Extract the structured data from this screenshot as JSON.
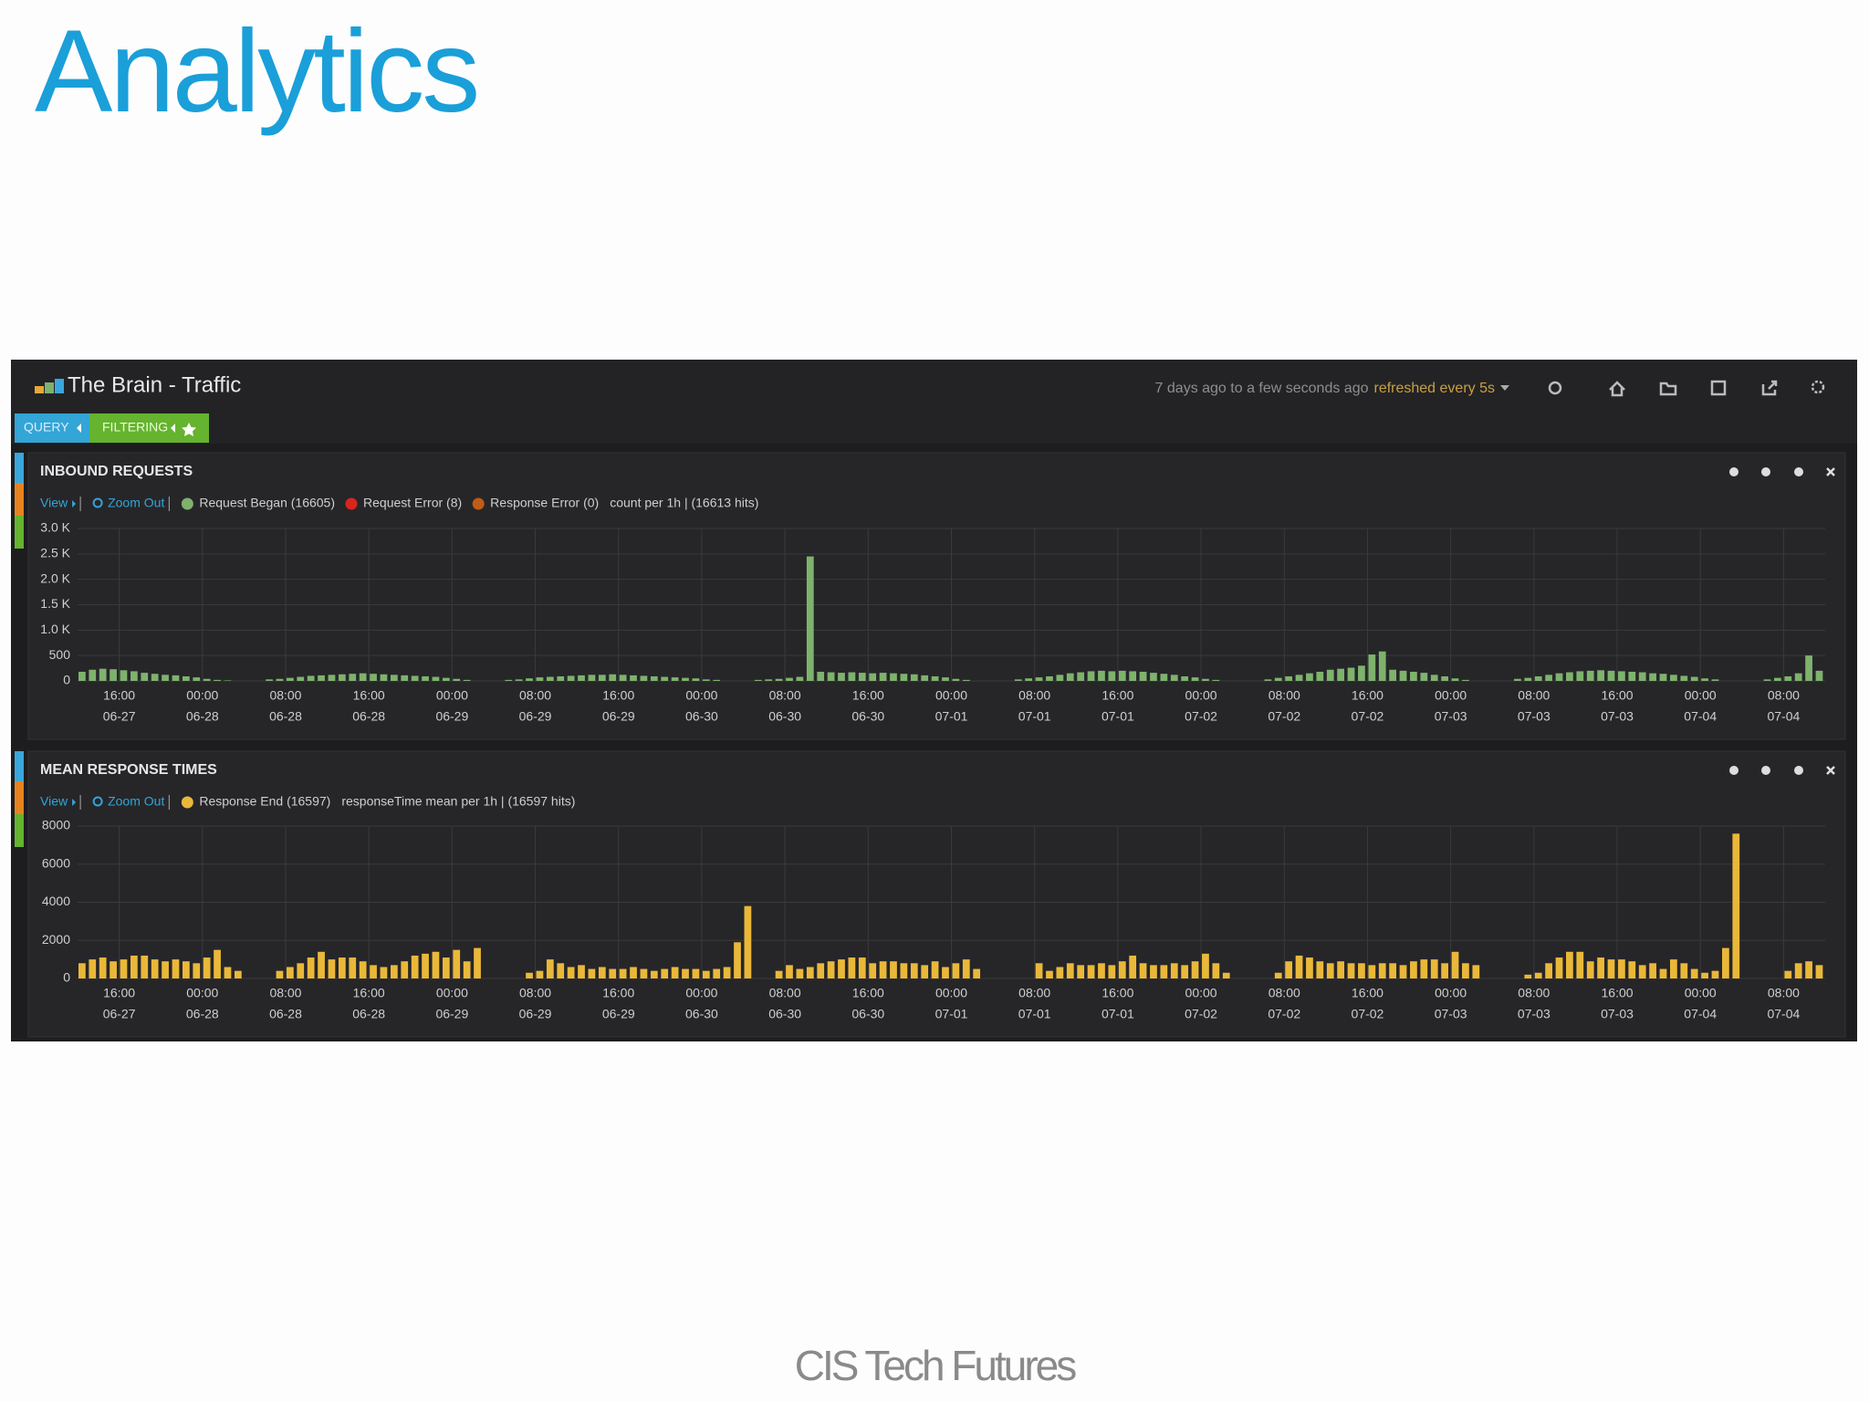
{
  "slide": {
    "title": "Analytics",
    "footer": "CIS Tech Futures"
  },
  "dashboard": {
    "title": "The Brain - Traffic",
    "time_range": "7 days ago to a few seconds ago",
    "refresh": "refreshed every 5s",
    "tabs": [
      "QUERY",
      "FILTERING"
    ]
  },
  "chart_data": [
    {
      "type": "bar",
      "title": "INBOUND REQUESTS",
      "view_label": "View",
      "zoom_label": "Zoom Out",
      "summary": "count per 1h | (16613 hits)",
      "other_legend": [
        {
          "name": "Request Error (8)",
          "color": "#d8261e"
        },
        {
          "name": "Response Error (0)",
          "color": "#c15c17"
        }
      ],
      "grid": true,
      "xlim": [
        12,
        180
      ],
      "ylim": [
        0,
        3000
      ],
      "yticks": [
        0,
        500,
        {
          "value": 1000,
          "label": "1.0 K"
        },
        {
          "value": 1500,
          "label": "1.5 K"
        },
        {
          "value": 2000,
          "label": "2.0 K"
        },
        {
          "value": 2500,
          "label": "2.5 K"
        },
        {
          "value": 3000,
          "label": "3.0 K"
        }
      ],
      "xticks": [
        {
          "value": 16,
          "label": "16:00",
          "date": "06-27"
        },
        {
          "value": 24,
          "label": "00:00",
          "date": "06-28"
        },
        {
          "value": 32,
          "label": "08:00",
          "date": "06-28"
        },
        {
          "value": 40,
          "label": "16:00",
          "date": "06-28"
        },
        {
          "value": 48,
          "label": "00:00",
          "date": "06-29"
        },
        {
          "value": 56,
          "label": "08:00",
          "date": "06-29"
        },
        {
          "value": 64,
          "label": "16:00",
          "date": "06-29"
        },
        {
          "value": 72,
          "label": "00:00",
          "date": "06-30"
        },
        {
          "value": 80,
          "label": "08:00",
          "date": "06-30"
        },
        {
          "value": 88,
          "label": "16:00",
          "date": "06-30"
        },
        {
          "value": 96,
          "label": "00:00",
          "date": "07-01"
        },
        {
          "value": 104,
          "label": "08:00",
          "date": "07-01"
        },
        {
          "value": 112,
          "label": "16:00",
          "date": "07-01"
        },
        {
          "value": 120,
          "label": "00:00",
          "date": "07-02"
        },
        {
          "value": 128,
          "label": "08:00",
          "date": "07-02"
        },
        {
          "value": 136,
          "label": "16:00",
          "date": "07-02"
        },
        {
          "value": 144,
          "label": "00:00",
          "date": "07-03"
        },
        {
          "value": 152,
          "label": "08:00",
          "date": "07-03"
        },
        {
          "value": 160,
          "label": "16:00",
          "date": "07-03"
        },
        {
          "value": 168,
          "label": "00:00",
          "date": "07-04"
        },
        {
          "value": 176,
          "label": "08:00",
          "date": "07-04"
        }
      ],
      "x": [
        12,
        13,
        14,
        15,
        16,
        17,
        18,
        19,
        20,
        21,
        22,
        23,
        24,
        25,
        26,
        27,
        28,
        29,
        30,
        31,
        32,
        33,
        34,
        35,
        36,
        37,
        38,
        39,
        40,
        41,
        42,
        43,
        44,
        45,
        46,
        47,
        48,
        49,
        50,
        51,
        52,
        53,
        54,
        55,
        56,
        57,
        58,
        59,
        60,
        61,
        62,
        63,
        64,
        65,
        66,
        67,
        68,
        69,
        70,
        71,
        72,
        73,
        74,
        75,
        76,
        77,
        78,
        79,
        80,
        81,
        82,
        83,
        84,
        85,
        86,
        87,
        88,
        89,
        90,
        91,
        92,
        93,
        94,
        95,
        96,
        97,
        98,
        99,
        100,
        101,
        102,
        103,
        104,
        105,
        106,
        107,
        108,
        109,
        110,
        111,
        112,
        113,
        114,
        115,
        116,
        117,
        118,
        119,
        120,
        121,
        122,
        123,
        124,
        125,
        126,
        127,
        128,
        129,
        130,
        131,
        132,
        133,
        134,
        135,
        136,
        137,
        138,
        139,
        140,
        141,
        142,
        143,
        144,
        145,
        146,
        147,
        148,
        149,
        150,
        151,
        152,
        153,
        154,
        155,
        156,
        157,
        158,
        159,
        160,
        161,
        162,
        163,
        164,
        165,
        166,
        167,
        168,
        169,
        170,
        171,
        172,
        173,
        174,
        175,
        176,
        177,
        178,
        179
      ],
      "series": [
        {
          "name": "Request Began (16605)",
          "color": "#7eb26d",
          "values": [
            180,
            220,
            240,
            230,
            210,
            190,
            160,
            140,
            120,
            110,
            90,
            70,
            40,
            20,
            10,
            null,
            null,
            null,
            30,
            40,
            60,
            80,
            100,
            110,
            120,
            130,
            140,
            150,
            140,
            130,
            120,
            110,
            100,
            90,
            80,
            60,
            40,
            20,
            null,
            null,
            null,
            20,
            30,
            50,
            70,
            80,
            90,
            100,
            110,
            120,
            120,
            130,
            120,
            110,
            100,
            90,
            80,
            70,
            60,
            50,
            30,
            20,
            null,
            null,
            null,
            20,
            30,
            40,
            60,
            80,
            2450,
            180,
            170,
            160,
            170,
            160,
            150,
            160,
            150,
            140,
            130,
            110,
            90,
            70,
            40,
            20,
            null,
            null,
            null,
            null,
            30,
            50,
            70,
            90,
            120,
            150,
            170,
            190,
            200,
            190,
            200,
            190,
            180,
            160,
            140,
            120,
            90,
            70,
            40,
            20,
            null,
            null,
            null,
            null,
            30,
            60,
            90,
            120,
            150,
            180,
            220,
            240,
            260,
            300,
            520,
            580,
            220,
            200,
            180,
            160,
            120,
            90,
            50,
            20,
            null,
            null,
            null,
            null,
            40,
            60,
            90,
            120,
            150,
            170,
            190,
            200,
            210,
            200,
            190,
            180,
            170,
            150,
            140,
            120,
            100,
            80,
            50,
            30,
            null,
            null,
            null,
            null,
            30,
            60,
            90,
            150,
            500,
            200
          ]
        }
      ]
    },
    {
      "type": "bar",
      "title": "MEAN RESPONSE TIMES",
      "view_label": "View",
      "zoom_label": "Zoom Out",
      "summary": "responseTime mean per 1h | (16597 hits)",
      "other_legend": [],
      "grid": true,
      "xlim": [
        12,
        180
      ],
      "ylim": [
        0,
        8000
      ],
      "yticks": [
        0,
        2000,
        4000,
        6000,
        8000
      ],
      "xticks": [
        {
          "value": 16,
          "label": "16:00",
          "date": "06-27"
        },
        {
          "value": 24,
          "label": "00:00",
          "date": "06-28"
        },
        {
          "value": 32,
          "label": "08:00",
          "date": "06-28"
        },
        {
          "value": 40,
          "label": "16:00",
          "date": "06-28"
        },
        {
          "value": 48,
          "label": "00:00",
          "date": "06-29"
        },
        {
          "value": 56,
          "label": "08:00",
          "date": "06-29"
        },
        {
          "value": 64,
          "label": "16:00",
          "date": "06-29"
        },
        {
          "value": 72,
          "label": "00:00",
          "date": "06-30"
        },
        {
          "value": 80,
          "label": "08:00",
          "date": "06-30"
        },
        {
          "value": 88,
          "label": "16:00",
          "date": "06-30"
        },
        {
          "value": 96,
          "label": "00:00",
          "date": "07-01"
        },
        {
          "value": 104,
          "label": "08:00",
          "date": "07-01"
        },
        {
          "value": 112,
          "label": "16:00",
          "date": "07-01"
        },
        {
          "value": 120,
          "label": "00:00",
          "date": "07-02"
        },
        {
          "value": 128,
          "label": "08:00",
          "date": "07-02"
        },
        {
          "value": 136,
          "label": "16:00",
          "date": "07-02"
        },
        {
          "value": 144,
          "label": "00:00",
          "date": "07-03"
        },
        {
          "value": 152,
          "label": "08:00",
          "date": "07-03"
        },
        {
          "value": 160,
          "label": "16:00",
          "date": "07-03"
        },
        {
          "value": 168,
          "label": "00:00",
          "date": "07-04"
        },
        {
          "value": 176,
          "label": "08:00",
          "date": "07-04"
        }
      ],
      "x": [
        12,
        13,
        14,
        15,
        16,
        17,
        18,
        19,
        20,
        21,
        22,
        23,
        24,
        25,
        26,
        27,
        28,
        29,
        30,
        31,
        32,
        33,
        34,
        35,
        36,
        37,
        38,
        39,
        40,
        41,
        42,
        43,
        44,
        45,
        46,
        47,
        48,
        49,
        50,
        51,
        52,
        53,
        54,
        55,
        56,
        57,
        58,
        59,
        60,
        61,
        62,
        63,
        64,
        65,
        66,
        67,
        68,
        69,
        70,
        71,
        72,
        73,
        74,
        75,
        76,
        77,
        78,
        79,
        80,
        81,
        82,
        83,
        84,
        85,
        86,
        87,
        88,
        89,
        90,
        91,
        92,
        93,
        94,
        95,
        96,
        97,
        98,
        99,
        100,
        101,
        102,
        103,
        104,
        105,
        106,
        107,
        108,
        109,
        110,
        111,
        112,
        113,
        114,
        115,
        116,
        117,
        118,
        119,
        120,
        121,
        122,
        123,
        124,
        125,
        126,
        127,
        128,
        129,
        130,
        131,
        132,
        133,
        134,
        135,
        136,
        137,
        138,
        139,
        140,
        141,
        142,
        143,
        144,
        145,
        146,
        147,
        148,
        149,
        150,
        151,
        152,
        153,
        154,
        155,
        156,
        157,
        158,
        159,
        160,
        161,
        162,
        163,
        164,
        165,
        166,
        167,
        168,
        169,
        170,
        171,
        172,
        173,
        174,
        175,
        176,
        177,
        178,
        179
      ],
      "series": [
        {
          "name": "Response End (16597)",
          "color": "#eab839",
          "values": [
            800,
            1000,
            1100,
            900,
            1000,
            1200,
            1200,
            1000,
            900,
            1000,
            900,
            800,
            1100,
            1500,
            600,
            400,
            null,
            null,
            null,
            400,
            600,
            800,
            1100,
            1400,
            1000,
            1100,
            1100,
            900,
            700,
            600,
            700,
            900,
            1200,
            1300,
            1400,
            1100,
            1500,
            900,
            1600,
            null,
            null,
            null,
            null,
            300,
            400,
            1000,
            800,
            600,
            700,
            500,
            600,
            500,
            500,
            600,
            500,
            400,
            500,
            600,
            500,
            500,
            400,
            500,
            600,
            1900,
            3800,
            null,
            null,
            400,
            700,
            500,
            600,
            800,
            900,
            1000,
            1100,
            1100,
            800,
            900,
            900,
            800,
            800,
            700,
            900,
            600,
            800,
            1000,
            500,
            null,
            null,
            null,
            null,
            null,
            800,
            400,
            600,
            800,
            700,
            700,
            800,
            700,
            900,
            1200,
            800,
            700,
            700,
            800,
            700,
            900,
            1300,
            800,
            300,
            null,
            null,
            null,
            null,
            300,
            900,
            1200,
            1100,
            900,
            800,
            900,
            800,
            800,
            700,
            800,
            800,
            700,
            900,
            1000,
            1000,
            800,
            1400,
            800,
            700,
            null,
            null,
            null,
            null,
            200,
            300,
            800,
            1100,
            1400,
            1400,
            900,
            1100,
            1000,
            1000,
            900,
            700,
            800,
            500,
            1000,
            800,
            500,
            300,
            400,
            1600,
            7600,
            null,
            null,
            null,
            null,
            400,
            800,
            900,
            700
          ]
        }
      ]
    }
  ]
}
